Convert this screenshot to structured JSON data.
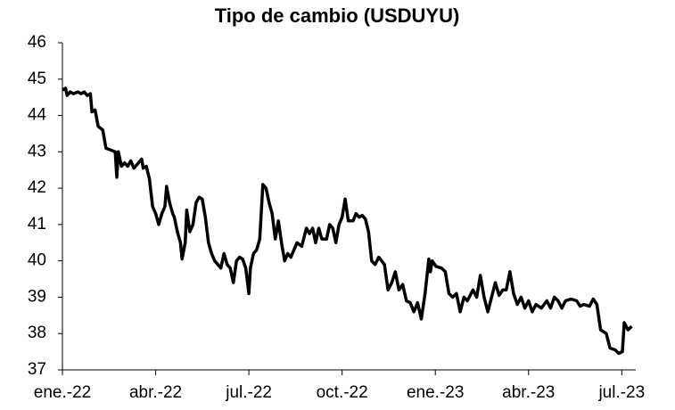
{
  "chart_data": {
    "type": "line",
    "title": "Tipo de cambio (USDUYU)",
    "color": "#000000",
    "x": [
      0.0,
      0.1,
      0.15,
      0.25,
      0.35,
      0.5,
      0.6,
      0.7,
      0.8,
      0.9,
      0.95,
      1.05,
      1.15,
      1.3,
      1.4,
      1.55,
      1.7,
      1.75,
      1.8,
      1.9,
      2.0,
      2.1,
      2.2,
      2.3,
      2.45,
      2.55,
      2.6,
      2.7,
      2.8,
      2.9,
      3.0,
      3.1,
      3.2,
      3.3,
      3.35,
      3.45,
      3.55,
      3.6,
      3.7,
      3.8,
      3.85,
      3.95,
      4.0,
      4.1,
      4.2,
      4.3,
      4.4,
      4.5,
      4.6,
      4.7,
      4.8,
      4.9,
      5.0,
      5.1,
      5.2,
      5.3,
      5.4,
      5.5,
      5.6,
      5.7,
      5.8,
      5.9,
      6.0,
      6.05,
      6.15,
      6.25,
      6.35,
      6.45,
      6.55,
      6.65,
      6.75,
      6.85,
      6.95,
      7.05,
      7.15,
      7.25,
      7.35,
      7.45,
      7.55,
      7.7,
      7.85,
      7.95,
      8.05,
      8.15,
      8.25,
      8.35,
      8.5,
      8.6,
      8.7,
      8.8,
      8.9,
      9.0,
      9.1,
      9.2,
      9.35,
      9.45,
      9.55,
      9.65,
      9.75,
      9.85,
      9.95,
      10.06,
      10.18,
      10.36,
      10.48,
      10.6,
      10.71,
      10.83,
      10.95,
      11.07,
      11.19,
      11.31,
      11.43,
      11.55,
      11.67,
      11.79,
      11.84,
      11.9,
      12.02,
      12.2,
      12.32,
      12.44,
      12.56,
      12.68,
      12.8,
      12.92,
      13.03,
      13.21,
      13.33,
      13.45,
      13.57,
      13.69,
      13.81,
      13.93,
      14.05,
      14.17,
      14.28,
      14.4,
      14.52,
      14.64,
      14.76,
      14.88,
      15.0,
      15.12,
      15.24,
      15.41,
      15.59,
      15.71,
      15.83,
      15.95,
      16.07,
      16.19,
      16.37,
      16.55,
      16.66,
      16.78,
      16.96,
      17.08,
      17.2,
      17.32,
      17.5,
      17.62,
      17.79,
      17.9,
      18.02,
      18.08,
      18.2,
      18.32
    ],
    "values": [
      44.7,
      44.75,
      44.55,
      44.65,
      44.6,
      44.65,
      44.6,
      44.65,
      44.55,
      44.6,
      44.1,
      44.15,
      43.7,
      43.6,
      43.1,
      43.05,
      43.0,
      42.3,
      43.0,
      42.6,
      42.7,
      42.6,
      42.75,
      42.55,
      42.7,
      42.8,
      42.55,
      42.6,
      42.25,
      41.5,
      41.3,
      41.0,
      41.3,
      41.5,
      42.05,
      41.6,
      41.3,
      41.2,
      40.8,
      40.5,
      40.05,
      40.5,
      41.4,
      40.8,
      41.0,
      41.6,
      41.75,
      41.7,
      41.2,
      40.5,
      40.2,
      40.0,
      39.9,
      39.8,
      40.2,
      39.9,
      39.8,
      39.4,
      40.0,
      40.1,
      40.05,
      39.8,
      39.1,
      39.8,
      40.2,
      40.3,
      40.6,
      42.1,
      42.0,
      41.6,
      41.3,
      40.6,
      41.1,
      40.5,
      40.0,
      40.2,
      40.1,
      40.3,
      40.5,
      40.4,
      40.9,
      40.75,
      40.9,
      40.5,
      40.9,
      40.6,
      40.6,
      41.0,
      40.9,
      40.5,
      41.0,
      41.2,
      41.7,
      41.1,
      41.1,
      41.3,
      41.2,
      41.25,
      41.15,
      40.8,
      40.0,
      39.9,
      40.1,
      39.9,
      39.2,
      39.4,
      39.7,
      39.2,
      39.35,
      38.9,
      38.85,
      38.6,
      38.85,
      38.4,
      39.1,
      40.05,
      39.7,
      40.0,
      39.85,
      39.8,
      39.7,
      39.1,
      39.0,
      39.1,
      38.6,
      39.0,
      38.9,
      39.2,
      39.0,
      39.6,
      39.0,
      38.6,
      39.0,
      39.4,
      39.05,
      39.2,
      39.2,
      39.7,
      39.1,
      38.8,
      39.0,
      38.7,
      38.9,
      38.6,
      38.8,
      38.7,
      38.9,
      38.7,
      39.0,
      38.9,
      38.7,
      38.9,
      38.95,
      38.9,
      38.75,
      38.8,
      38.75,
      38.95,
      38.8,
      38.1,
      38.0,
      37.6,
      37.55,
      37.45,
      37.5,
      38.3,
      38.1,
      38.2
    ],
    "xlim": [
      0,
      18.45
    ],
    "xticks": [
      {
        "value": 0,
        "label": "ene.-22"
      },
      {
        "value": 3,
        "label": "abr.-22"
      },
      {
        "value": 6,
        "label": "jul.-22"
      },
      {
        "value": 9,
        "label": "oct.-22"
      },
      {
        "value": 12,
        "label": "ene.-23"
      },
      {
        "value": 15,
        "label": "abr.-23"
      },
      {
        "value": 18,
        "label": "jul.-23"
      }
    ],
    "ylim": [
      37,
      46
    ],
    "yticks": [
      37,
      38,
      39,
      40,
      41,
      42,
      43,
      44,
      45,
      46
    ]
  }
}
